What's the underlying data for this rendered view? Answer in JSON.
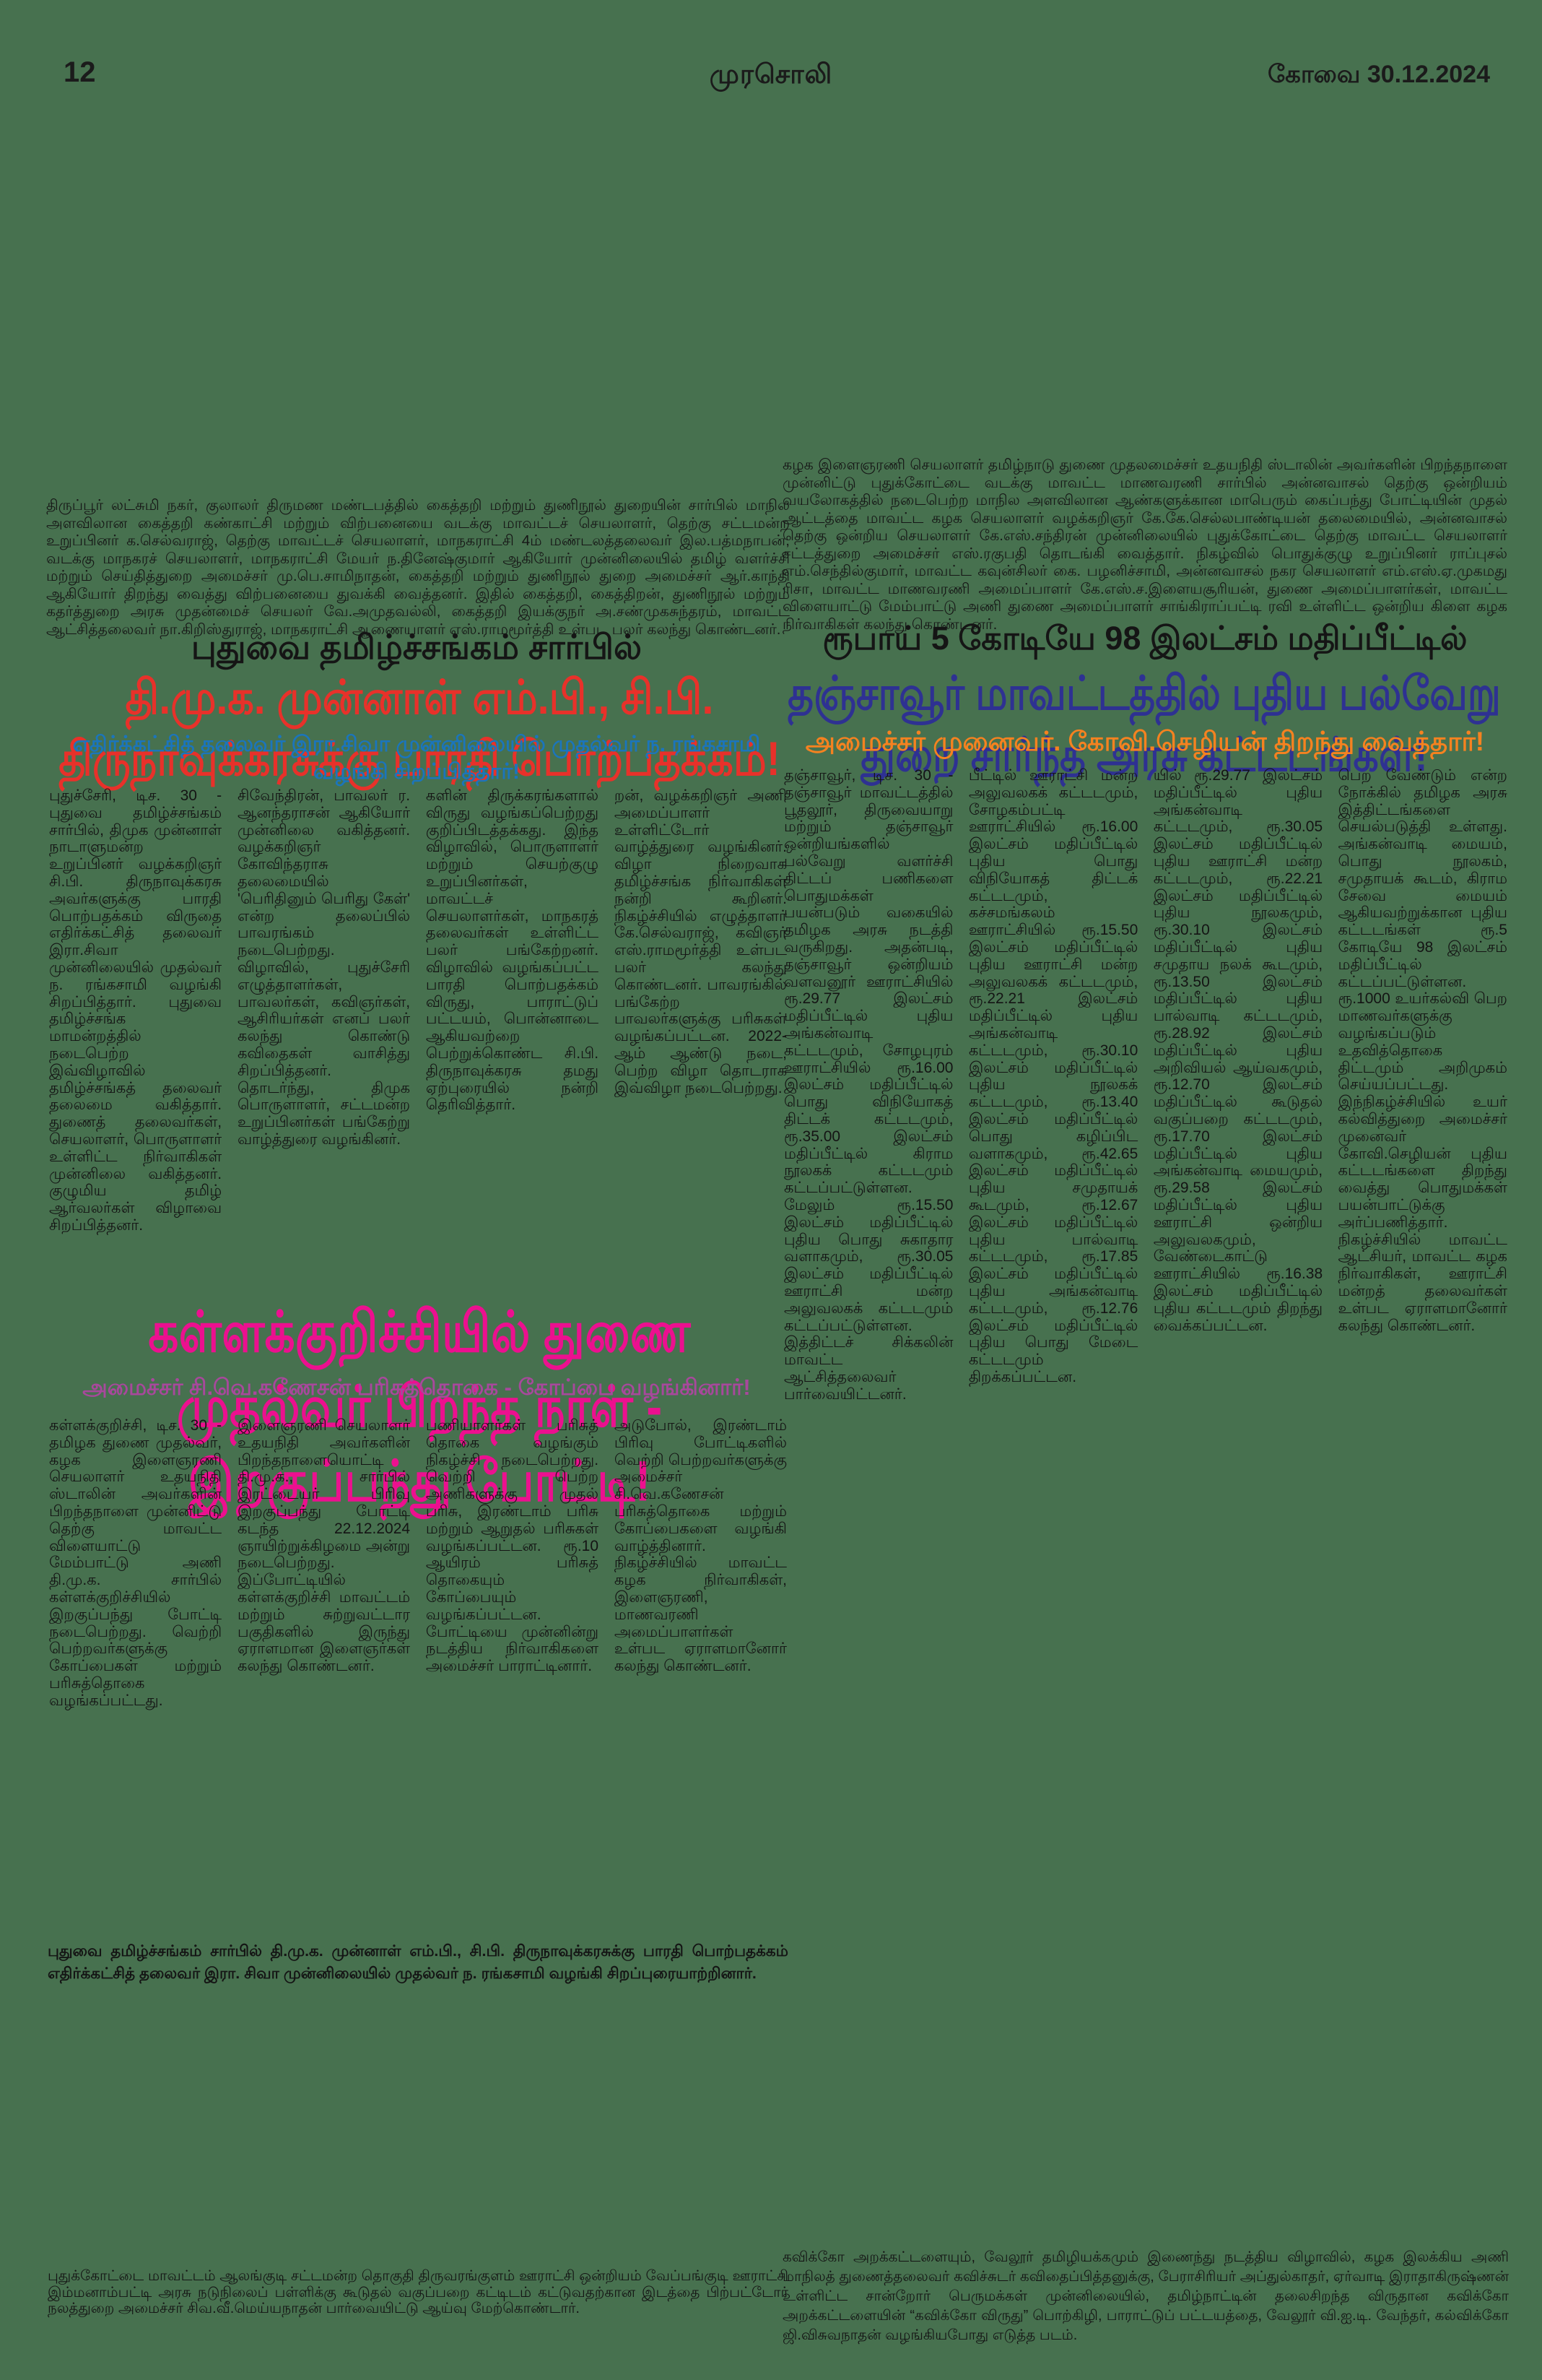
{
  "page": {
    "number": "12",
    "masthead": "முரசொலி",
    "edition": "கோவை  30.12.2024"
  },
  "colors": {
    "background": "#47714F",
    "body_text": "#141414",
    "headline_red": "#E8312A",
    "subhead_blue": "#1B75BC",
    "headline_navy": "#2E3192",
    "subhead_orange": "#F58220",
    "headline_magenta": "#EC108F",
    "subhead_purple": "#A8489C"
  },
  "left": {
    "intro": "திருப்பூர் லட்சுமி நகர், குலாலர் திருமண மண்டபத்தில் கைத்தறி மற்றும் துணிநூல் துறையின் சார்பில் மாநில அளவிலான கைத்தறி கண்காட்சி மற்றும் விற்பனையை வடக்கு மாவட்டச் செயலாளர், தெற்கு சட்டமன்ற உறுப்பினர் க.செல்வராஜ், தெற்கு மாவட்டச் செயலாளர், மாநகராட்சி 4ம் மண்டலத்தலைவர் இல.பத்மநாபன், வடக்கு மாநகரச் செயலாளர், மாநகராட்சி மேயர் ந.தினேஷ்குமார் ஆகியோர் முன்னிலையில் தமிழ் வளர்ச்சி மற்றும் செய்தித்துறை அமைச்சர் மு.பெ.சாமிநாதன், கைத்தறி மற்றும் துணிநூல் துறை அமைச்சர் ஆர்.காந்தி ஆகியோர் திறந்து வைத்து விற்பனையை துவக்கி வைத்தனர். இதில் கைத்தறி, கைத்திறன், துணிநூல் மற்றும் கதர்த்துறை அரசு முதன்மைச் செயலர் வே.அமுதவல்லி, கைத்தறி இயக்குநர் அ.சண்முகசுந்தரம், மாவட்ட ஆட்சித்தலைவர் நா.கிறிஸ்துராஜ், மாநகராட்சி ஆணையாளர் எஸ்.ராமமூர்த்தி உள்பட பலர் கலந்து கொண்டனர்.",
    "article1": {
      "kicker": "புதுவை தமிழ்ச்சங்கம் சார்பில்",
      "headline": "தி.மு.க. முன்னாள் எம்.பி., சி.பி. திருநாவுக்கரசுக்கு பாரதி பொற்பதக்கம்!",
      "subhead": "எதிர்க்கட்சித் தலைவர் இரா.சிவா முன்னிலையில் முதல்வர் ந. ரங்கசாமி வழங்கி சிறப்பித்தார்!",
      "columns": [
        "புதுச்சேரி, டிச. 30 - புதுவை தமிழ்ச்சங்கம் சார்பில், திமுக முன்னாள் நாடாளுமன்ற உறுப்பினர் வழக்கறிஞர் சி.பி. திருநாவுக்கரசு அவர்களுக்கு பாரதி பொற்பதக்கம் விருதை எதிர்க்கட்சித் தலைவர் இரா.சிவா முன்னிலையில் முதல்வர் ந. ரங்கசாமி வழங்கி சிறப்பித்தார். புதுவை தமிழ்ச்சங்க மாமன்றத்தில் நடைபெற்ற இவ்விழாவில் தமிழ்ச்சங்கத் தலைவர் தலைமை வகித்தார். துணைத் தலைவர்கள், செயலாளர், பொருளாளர் உள்ளிட்ட நிர்வாகிகள் முன்னிலை வகித்தனர். குழுமிய தமிழ் ஆர்வலர்கள் விழாவை சிறப்பித்தனர்.",
        "சிவேந்திரன், பாவலர் ர. ஆனந்தராசன் ஆகியோர் முன்னிலை வகித்தனர். வழக்கறிஞர் கோவிந்தராசு தலைமையில் 'பெரிதினும் பெரிது கேள்' என்ற தலைப்பில் பாவரங்கம் நடைபெற்றது. விழாவில், புதுச்சேரி எழுத்தாளர்கள், பாவலர்கள், கவிஞர்கள், ஆசிரியர்கள் எனப் பலர் கலந்து கொண்டு கவிதைகள் வாசித்து சிறப்பித்தனர். தொடர்ந்து, திமுக பொருளாளர், சட்டமன்ற உறுப்பினர்கள் பங்கேற்று வாழ்த்துரை வழங்கினர்.",
        "களின் திருக்கரங்களால் விருது வழங்கப்பெற்றது குறிப்பிடத்தக்கது. இந்த விழாவில், பொருளாளர் மற்றும் செயற்குழு உறுப்பினர்கள், மாவட்டச் செயலாளர்கள், மாநகரத் தலைவர்கள் உள்ளிட்ட பலர் பங்கேற்றனர். விழாவில் வழங்கப்பட்ட பாரதி பொற்பதக்கம் விருது, பாராட்டுப் பட்டயம், பொன்னாடை ஆகியவற்றை பெற்றுக்கொண்ட சி.பி. திருநாவுக்கரசு தமது ஏற்புரையில் நன்றி தெரிவித்தார்.",
        "றன், வழக்கறிஞர் அணி அமைப்பாளர் உள்ளிட்டோர் வாழ்த்துரை வழங்கினர். விழா நிறைவாக தமிழ்ச்சங்க நிர்வாகிகள் நன்றி கூறினர். நிகழ்ச்சியில் எழுத்தாளர் கே.செல்வராஜ், கவிஞர் எஸ்.ராமமூர்த்தி உள்பட பலர் கலந்து கொண்டனர். பாவரங்கில் பங்கேற்ற பாவலர்களுக்கு பரிசுகள் வழங்கப்பட்டன. 2022-ஆம் ஆண்டு நடை, பெற்ற விழா தொடராக இவ்விழா நடைபெற்றது."
      ],
      "caption": "புதுவை தமிழ்ச்சங்கம் சார்பில் தி.மு.க. முன்னாள் எம்.பி., சி.பி. திருநாவுக்கரசுக்கு பாரதி பொற்பதக்கம் எதிர்க்கட்சித் தலைவர் இரா. சிவா முன்னிலையில் முதல்வர் ந. ரங்கசாமி வழங்கி சிறப்புரையாற்றினார்."
    },
    "article2": {
      "headline": "கள்ளக்குறிச்சியில் துணை முதல்வர் பிறந்த நாள் -  இறகுப்பந்து போட்டி!",
      "subhead": "அமைச்சர் சி.வெ.கணேசன் பரிசுத்தொகை - கோப்பை வழங்கினார்!",
      "columns": [
        "கள்ளக்குறிச்சி, டிச. 30 - தமிழக துணை முதல்வர், கழக இளைஞரணி செயலாளர் உதயநிதி ஸ்டாலின் அவர்களின் பிறந்தநாளை முன்னிட்டு தெற்கு மாவட்ட விளையாட்டு மேம்பாட்டு அணி தி.மு.க. சார்பில் கள்ளக்குறிச்சியில் இறகுப்பந்து போட்டி நடைபெற்றது. வெற்றி பெற்றவர்களுக்கு கோப்பைகள் மற்றும் பரிசுத்தொகை வழங்கப்பட்டது.",
        "இளைஞரணி செயலாளர் உதயநிதி அவர்களின் பிறந்தநாளையொட்டி தி.மு.க., சார்பில் இரட்டையர் பிரிவு இறகுப்பந்து போட்டி கடந்த 22.12.2024 ஞாயிற்றுக்கிழமை அன்று நடைபெற்றது. இப்போட்டியில் கள்ளக்குறிச்சி மாவட்டம் மற்றும் சுற்றுவட்டார பகுதிகளில் இருந்து ஏராளமான இளைஞர்கள் கலந்து கொண்டனர்.",
        "பணியாளர்கள் பரிசுத் தொகை வழங்கும் நிகழ்ச்சி நடைபெற்றது. வெற்றி பெற்ற அணிகளுக்கு முதல் பரிசு, இரண்டாம் பரிசு மற்றும் ஆறுதல் பரிசுகள் வழங்கப்பட்டன. ரூ.10 ஆயிரம் பரிசுத் தொகையும் கோப்பையும் வழங்கப்பட்டன. போட்டியை முன்னின்று நடத்திய நிர்வாகிகளை அமைச்சர் பாராட்டினார்.",
        "அடுபோல், இரண்டாம் பிரிவு போட்டிகளில் வெற்றி பெற்றவர்களுக்கு அமைச்சர் சி.வெ.கணேசன் பரிசுத்தொகை மற்றும் கோப்பைகளை வழங்கி வாழ்த்தினார். நிகழ்ச்சியில் மாவட்ட கழக நிர்வாகிகள், இளைஞரணி, மாணவரணி அமைப்பாளர்கள் உள்பட ஏராளமானோர் கலந்து கொண்டனர்."
      ]
    },
    "bottom_note": "புதுக்கோட்டை மாவட்டம் ஆலங்குடி சட்டமன்ற தொகுதி திருவரங்குளம் ஊராட்சி ஒன்றியம் வேப்பங்குடி ஊராட்சி இம்மனாம்பட்டி அரசு நடுநிலைப் பள்ளிக்கு கூடுதல் வகுப்பறை கட்டிடம் கட்டுவதற்கான இடத்தை பிற்பட்டோர் நலத்துறை அமைச்சர் சிவ.வீ.மெய்யநாதன் பார்வையிட்டு ஆய்வு மேற்கொண்டார்."
  },
  "right": {
    "intro": "கழக இளைஞரணி செயலாளர் தமிழ்நாடு துணை முதலமைச்சர் உதயநிதி ஸ்டாலின் அவர்களின் பிறந்தநாளை முன்னிட்டு புதுக்கோட்டை வடக்கு மாவட்ட மாணவரணி சார்பில் அன்னவாசல் தெற்கு ஒன்றியம் வயலோகத்தில் நடைபெற்ற மாநில அளவிலான ஆண்களுக்கான மாபெரும் கைப்பந்து போட்டியின் முதல் ஆட்டத்தை மாவட்ட கழக செயலாளர் வழக்கறிஞர் கே.கே.செல்லபாண்டியன் தலைமையில், அன்னவாசல் தெற்கு ஒன்றிய செயலாளர் கே.எஸ்.சந்திரன் முன்னிலையில் புதுக்கோட்டை தெற்கு மாவட்ட செயலாளர் சட்டத்துறை அமைச்சர் எஸ்.ரகுபதி தொடங்கி வைத்தார். நிகழ்வில் பொதுக்குழு உறுப்பினர் ராப்புசல் எம்.செந்தில்குமார், மாவட்ட கவுன்சிலர் கை. பழனிச்சாமி, அன்னவாசல் நகர செயலாளர் எம்.எஸ்.ஏ.முகமது ரிசா, மாவட்ட மாணவரணி அமைப்பாளர் கே.எஸ்.ச.இளையசூரியன், துணை அமைப்பாளர்கள், மாவட்ட விளையாட்டு மேம்பாட்டு அணி துணை அமைப்பாளர் சாங்கிராப்பட்டி ரவி உள்ளிட்ட ஒன்றிய கிளை கழக நிர்வாகிகள் கலந்து கொண்டனர்.",
    "article": {
      "kicker": "ரூபாய் 5 கோடியே 98 இலட்சம் மதிப்பீட்டில்",
      "headline": "தஞ்சாவூர் மாவட்டத்தில் புதிய பல்வேறு துறை சார்ந்த அரசு கட்டடங்கள்!",
      "subhead": "அமைச்சர் முனைவர். கோவி.செழியன் திறந்து வைத்தார்!",
      "columns": [
        "தஞ்சாவூர், டிச. 30 - தஞ்சாவூர் மாவட்டத்தில் பூதலூர், திருவையாறு மற்றும் தஞ்சாவூர் ஒன்றியங்களில் பல்வேறு வளர்ச்சி திட்டப் பணிகளை பொதுமக்கள் பயன்படும் வகையில் தமிழக அரசு நடத்தி வருகிறது. அதன்படி, தஞ்சாவூர் ஒன்றியம் வளவனூர் ஊராட்சியில் ரூ.29.77 இலட்சம் மதிப்பீட்டில் புதிய அங்கன்வாடி கட்டடமும், சோழபுரம் ஊராட்சியில் ரூ.16.00 இலட்சம் மதிப்பீட்டில் பொது விநியோகத் திட்டக் கட்டடமும், ரூ.35.00 இலட்சம் மதிப்பீட்டில் கிராம நூலகக் கட்டடமும் கட்டப்பட்டுள்ளன. மேலும் ரூ.15.50 இலட்சம் மதிப்பீட்டில் புதிய பொது சுகாதார வளாகமும், ரூ.30.05 இலட்சம் மதிப்பீட்டில் ஊராட்சி மன்ற அலுவலகக் கட்டடமும் கட்டப்பட்டுள்ளன. இத்திட்டச் சிக்கலின் மாவட்ட ஆட்சித்தலைவர் பார்வையிட்டனர்.",
        "பீட்டில் ஊராட்சி மன்ற அலுவலகக் கட்டடமும், சோழகம்பட்டி ஊராட்சியில் ரூ.16.00 இலட்சம் மதிப்பீட்டில் புதிய பொது விநியோகத் திட்டக் கட்டடமும், கச்சமங்கலம் ஊராட்சியில் ரூ.15.50 இலட்சம் மதிப்பீட்டில் புதிய ஊராட்சி மன்ற அலுவலகக் கட்டடமும், ரூ.22.21 இலட்சம் மதிப்பீட்டில் புதிய அங்கன்வாடி கட்டடமும், ரூ.30.10 இலட்சம் மதிப்பீட்டில் புதிய நூலகக் கட்டடமும், ரூ.13.40 இலட்சம் மதிப்பீட்டில் பொது கழிப்பிட வளாகமும், ரூ.42.65 இலட்சம் மதிப்பீட்டில் புதிய சமுதாயக் கூடமும், ரூ.12.67 இலட்சம் மதிப்பீட்டில் புதிய பால்வாடி கட்டடமும், ரூ.17.85 இலட்சம் மதிப்பீட்டில் புதிய அங்கன்வாடி கட்டடமும், ரூ.12.76 இலட்சம் மதிப்பீட்டில் புதிய பொது மேடை கட்டடமும் திறக்கப்பட்டன.",
        "யில் ரூ.29.77 இலட்சம் மதிப்பீட்டில் புதிய அங்கன்வாடி கட்டடமும், ரூ.30.05 இலட்சம் மதிப்பீட்டில் புதிய ஊராட்சி மன்ற கட்டடமும், ரூ.22.21 இலட்சம் மதிப்பீட்டில் புதிய நூலகமும், ரூ.30.10 இலட்சம் மதிப்பீட்டில் புதிய சமுதாய நலக் கூடமும், ரூ.13.50 இலட்சம் மதிப்பீட்டில் புதிய பால்வாடி கட்டடமும், ரூ.28.92 இலட்சம் மதிப்பீட்டில் புதிய அறிவியல் ஆய்வகமும், ரூ.12.70 இலட்சம் மதிப்பீட்டில் கூடுதல் வகுப்பறை கட்டடமும், ரூ.17.70 இலட்சம் மதிப்பீட்டில் புதிய அங்கன்வாடி மையமும், ரூ.29.58 இலட்சம் மதிப்பீட்டில் புதிய ஊராட்சி ஒன்றிய அலுவலகமும், வேண்டைகாட்டு ஊராட்சியில் ரூ.16.38 இலட்சம் மதிப்பீட்டில் புதிய கட்டடமும் திறந்து வைக்கப்பட்டன.",
        "பெற வேண்டும் என்ற நோக்கில் தமிழக அரசு இத்திட்டங்களை செயல்படுத்தி உள்ளது. அங்கன்வாடி மையம், பொது நூலகம், சமுதாயக் கூடம், கிராம சேவை மையம் ஆகியவற்றுக்கான புதிய கட்டடங்கள் ரூ.5 கோடியே 98 இலட்சம் மதிப்பீட்டில் கட்டப்பட்டுள்ளன. ரூ.1000 உயர்கல்வி பெற மாணவர்களுக்கு வழங்கப்படும் உதவித்தொகை திட்டமும் அறிமுகம் செய்யப்பட்டது. இந்நிகழ்ச்சியில் உயர் கல்வித்துறை அமைச்சர் முனைவர் கோவி.செழியன் புதிய கட்டடங்களை திறந்து வைத்து பொதுமக்கள் பயன்பாட்டுக்கு அர்ப்பணித்தார். நிகழ்ச்சியில் மாவட்ட ஆட்சியர், மாவட்ட கழக நிர்வாகிகள், ஊராட்சி மன்றத் தலைவர்கள் உள்பட ஏராளமானோர் கலந்து கொண்டனர்."
      ]
    },
    "bottom_note": "கவிக்கோ அறக்கட்டளையும், வேலூர் தமிழியக்கமும் இணைந்து நடத்திய விழாவில், கழக இலக்கிய அணி மாநிலத் துணைத்தலைவர் கவிச்சுடர் கவிதைப்பித்தனுக்கு, பேராசிரியர் அப்துல்காதர், ஏர்வாடி இராதாகிருஷ்ணன் உள்ளிட்ட சான்றோர் பெருமக்கள் முன்னிலையில், தமிழ்நாட்டின் தலைசிறந்த விருதான கவிக்கோ அறக்கட்டளையின் “கவிக்கோ விருது” பொற்கிழி, பாராட்டுப் பட்டயத்தை, வேலூர் வி.ஐ.டி. வேந்தர், கல்விக்கோ ஜி.விசுவநாதன் வழங்கியபோது எடுத்த படம்."
  }
}
